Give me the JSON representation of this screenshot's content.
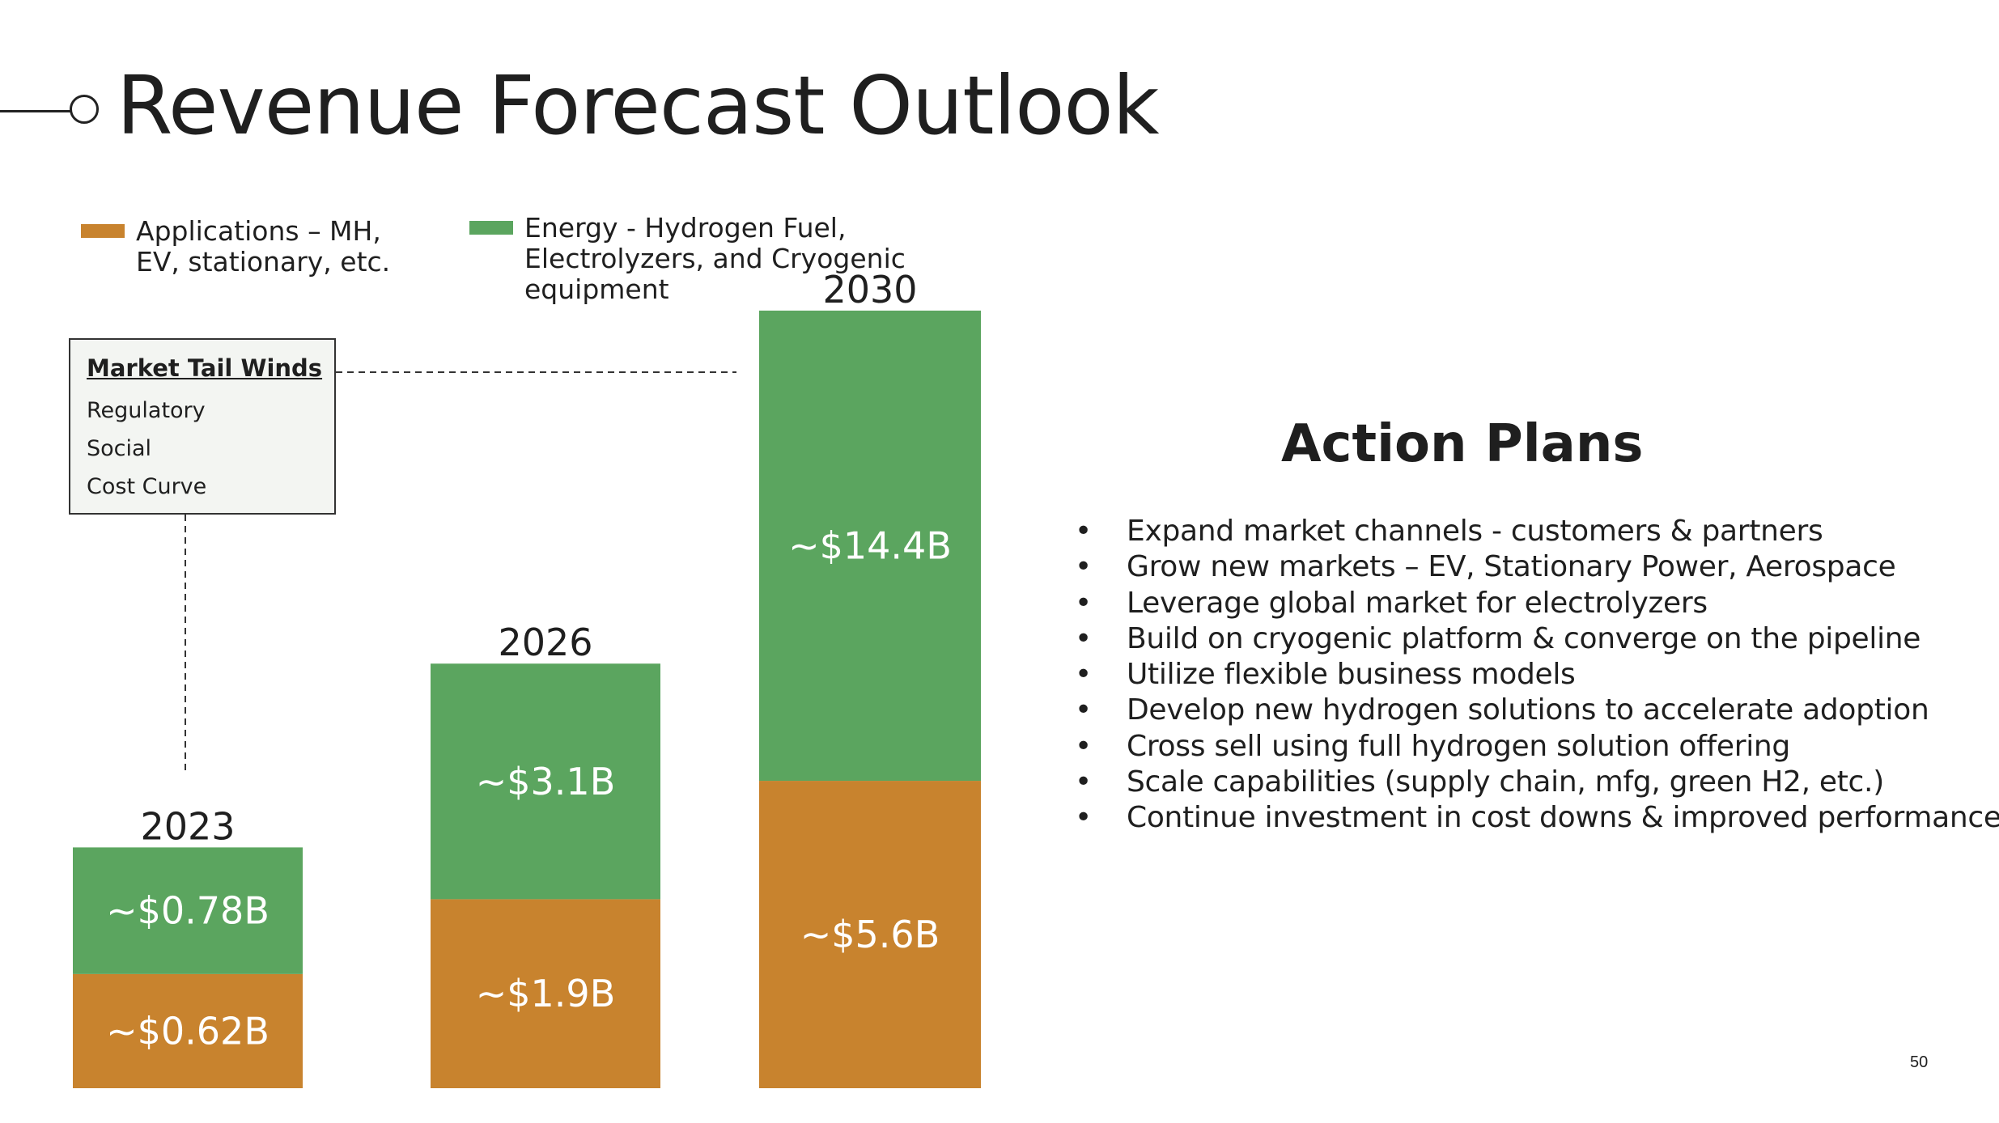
{
  "title": "Revenue Forecast Outlook",
  "legend": [
    {
      "label": "Applications – MH,\nEV, stationary, etc.",
      "color": "#c8832e"
    },
    {
      "label": "Energy - Hydrogen Fuel,\nElectrolyzers, and Cryogenic\nequipment",
      "color": "#5ba55f"
    }
  ],
  "market_tail_winds": {
    "title": "Market Tail Winds",
    "items": [
      "Regulatory",
      "Social",
      "Cost Curve"
    ]
  },
  "action_plans": {
    "title": "Action Plans",
    "items": [
      "Expand market channels - customers & partners",
      "Grow new markets –  EV, Stationary Power, Aerospace",
      "Leverage global market for electrolyzers",
      "Build on cryogenic platform & converge on the pipeline",
      "Utilize flexible business models",
      "Develop new hydrogen solutions to accelerate adoption",
      "Cross sell using full hydrogen solution offering",
      "Scale capabilities (supply chain, mfg, green H2, etc.)",
      "Continue investment in cost downs & improved performance"
    ]
  },
  "page_number": "50",
  "chart_data": {
    "type": "bar",
    "stacked": true,
    "categories": [
      "2023",
      "2026",
      "2030"
    ],
    "series": [
      {
        "name": "Applications – MH, EV, stationary, etc.",
        "color": "#c8832e",
        "values": [
          0.62,
          1.9,
          5.6
        ],
        "labels": [
          "~$0.62B",
          "~$1.9B",
          "~$5.6B"
        ]
      },
      {
        "name": "Energy - Hydrogen Fuel, Electrolyzers, and Cryogenic equipment",
        "color": "#5ba55f",
        "values": [
          0.78,
          3.1,
          14.4
        ],
        "labels": [
          "~$0.78B",
          "~$3.1B",
          "~$14.4B"
        ]
      }
    ],
    "axes_visible": false,
    "legend_position": "top-left"
  }
}
